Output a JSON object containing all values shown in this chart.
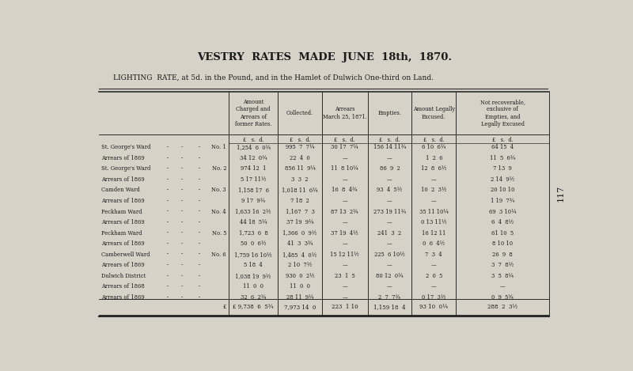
{
  "title": "VESTRY  RATES  MADE  JUNE  18th,  1870.",
  "subtitle": "LIGHTING  RATE, at 5d. in the Pound, and in the Hamlet of Dulwich One-third on Land.",
  "page_number": "117",
  "bg_color": "#d6d2c8",
  "col_headers": [
    "Amount\nCharged and\nArrears of\nformer Rates.",
    "Collected.",
    "Arrears\nMarch 25, 1871.",
    "Empties.",
    "Amount Legally\nExcused.",
    "Not recoverable,\nexclusive of\nEmpties, and\nLegally Excused"
  ],
  "currency_labels": [
    "£",
    "s.",
    "d."
  ],
  "rows": [
    [
      "St. George's Ward",
      "-",
      "-",
      "No. 1",
      "1,254  6  0¼",
      "995  7  7¼",
      "30 17  7¼",
      "156 14 11¾",
      "6 10  6¼",
      "64 15  4"
    ],
    [
      "Arrears of 1869",
      "-",
      "-",
      "-",
      "34 12  0¾",
      "22  4  0",
      "—",
      "—",
      "1  2  6",
      "11  5  6¾"
    ],
    [
      "St. George's Ward",
      "-",
      "-",
      "No. 2",
      "974 12  1",
      "856 11  9¼",
      "11  8 10¼",
      "86  9  2",
      "12  8  6½",
      "7 13  9"
    ],
    [
      "Arrears of 1869",
      "-",
      "-",
      "-",
      "5 17 11½",
      "3  3  2",
      "—",
      "—",
      "—",
      "2 14  9½"
    ],
    [
      "Camden Ward",
      "-",
      "-",
      "No. 3",
      "1,158 17  6",
      "1,018 11  6¼",
      "16  8  4¾",
      "93  4  5½",
      "10  2  3½",
      "20 10 10"
    ],
    [
      "Arrears of 1869",
      "-",
      "-",
      "-",
      "9 17  9¾",
      "7 18  2",
      "—",
      "—",
      "—",
      "1 19  7¾"
    ],
    [
      "Peckham Ward",
      "-",
      "-",
      "No. 4",
      "1,633 16  2½",
      "1,167  7  3",
      "87 13  2¾",
      "273 19 11¾",
      "35 11 10¼",
      "69  3 10¼"
    ],
    [
      "Arrears of 1869",
      "-",
      "-",
      "-",
      "44 18  5¼",
      "37 19  9¼",
      "—",
      "—",
      "0 13 11½",
      "6  4  8½"
    ],
    [
      "Peckham Ward",
      "-",
      "-",
      "No. 5",
      "1,723  6  8",
      "1,366  0  9½",
      "37 19  4½",
      "241  3  2",
      "16 12 11",
      "61 10  5"
    ],
    [
      "Arrears of 1869",
      "-",
      "-",
      "-",
      "50  0  6½",
      "41  3  3¾",
      "—",
      "—",
      "0  6  4½",
      "8 10 10"
    ],
    [
      "Camberwell Ward",
      "-",
      "-",
      "No. 6",
      "1,759 16 10½",
      "1,485  4  0½",
      "15 12 11½",
      "225  6 10½",
      "7  3  4",
      "26  9  8"
    ],
    [
      "Arrears of 1869",
      "-",
      "-",
      "-",
      "5 18  4",
      "2 10  7½",
      "—",
      "—",
      "—",
      "3  7  8½"
    ],
    [
      "Dulwich District",
      "-",
      "-",
      "-",
      "1,038 19  9½",
      "930  0  2½",
      "23  1  5",
      "80 12  0¾",
      "2  0  5",
      "3  5  8¼"
    ],
    [
      "Arrears of 1868",
      "-",
      "-",
      "-",
      "11  0  0",
      "11  0  0",
      "—",
      "—",
      "—",
      "—"
    ],
    [
      "Arrears of 1869",
      "-",
      "-",
      "-",
      "32  6  2¼",
      "28 11  9¼",
      "—",
      "2  7  7¾",
      "0 17  3½",
      "0  9  5¾"
    ]
  ],
  "totals_row": [
    "£ 9,738  6  5¾",
    "7,973 14  0",
    "223  1 10",
    "1,159 18  4",
    "93 10  0¼",
    "288  2  3½"
  ]
}
